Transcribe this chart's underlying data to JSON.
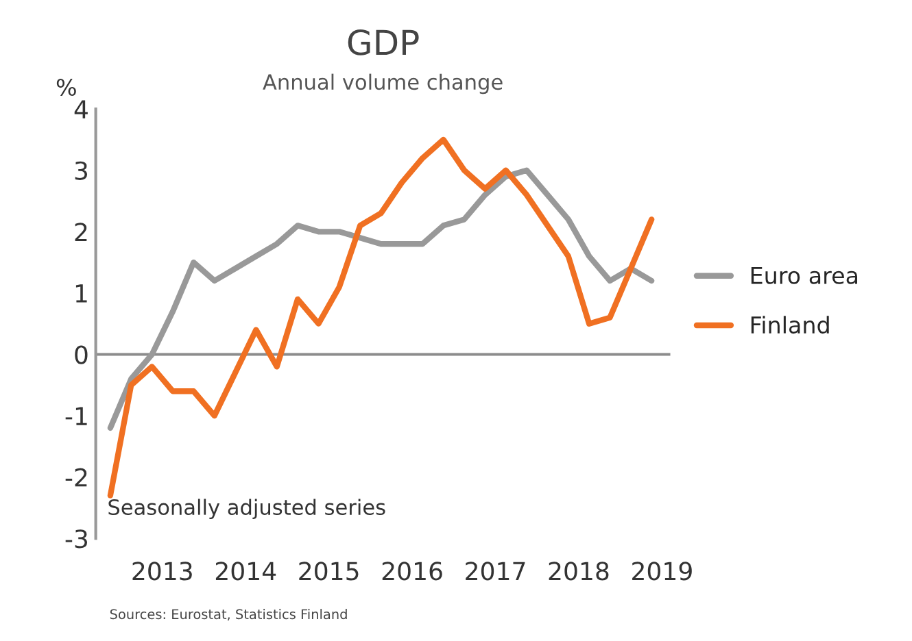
{
  "chart_data": {
    "type": "line",
    "title": "GDP",
    "subtitle": "Annual volume change",
    "ylabel": "%",
    "x": [
      2012.375,
      2012.625,
      2012.875,
      2013.125,
      2013.375,
      2013.625,
      2013.875,
      2014.125,
      2014.375,
      2014.625,
      2014.875,
      2015.125,
      2015.375,
      2015.625,
      2015.875,
      2016.125,
      2016.375,
      2016.625,
      2016.875,
      2017.125,
      2017.375,
      2017.625,
      2017.875,
      2018.125,
      2018.375,
      2018.625,
      2018.875
    ],
    "series": [
      {
        "name": "Euro area",
        "color": "#999999",
        "values": [
          -1.2,
          -0.4,
          0.0,
          0.7,
          1.5,
          1.2,
          1.4,
          1.6,
          1.8,
          2.1,
          2.0,
          2.0,
          1.9,
          1.8,
          1.8,
          1.8,
          2.1,
          2.2,
          2.6,
          2.9,
          3.0,
          2.6,
          2.2,
          1.6,
          1.2,
          1.4,
          1.2
        ]
      },
      {
        "name": "Finland",
        "color": "#f07022",
        "values": [
          -2.3,
          -0.5,
          -0.2,
          -0.6,
          -0.6,
          -1.0,
          -0.3,
          0.4,
          -0.2,
          0.9,
          0.5,
          1.1,
          2.1,
          2.3,
          2.8,
          3.2,
          3.5,
          3.0,
          2.7,
          3.0,
          2.6,
          2.1,
          1.6,
          0.5,
          0.6,
          1.4,
          2.2
        ]
      }
    ],
    "xlim": [
      2012.2,
      2019.1
    ],
    "xticks": [
      {
        "value": 2013,
        "label": "2013"
      },
      {
        "value": 2014,
        "label": "2014"
      },
      {
        "value": 2015,
        "label": "2015"
      },
      {
        "value": 2016,
        "label": "2016"
      },
      {
        "value": 2017,
        "label": "2017"
      },
      {
        "value": 2018,
        "label": "2018"
      },
      {
        "value": 2019,
        "label": "2019"
      }
    ],
    "ylim": [
      -3,
      4
    ],
    "yticks": [
      -3,
      -2,
      -1,
      0,
      1,
      2,
      3,
      4
    ],
    "ref_lines": [
      {
        "axis": "y",
        "value": 0,
        "color": "#8c8c8c"
      }
    ],
    "annotations": [
      "Seasonally adjusted series",
      "Sources: Eurostat, Statistics Finland"
    ],
    "legend": "right",
    "grid": false,
    "marker": "none",
    "line_style": "solid"
  }
}
